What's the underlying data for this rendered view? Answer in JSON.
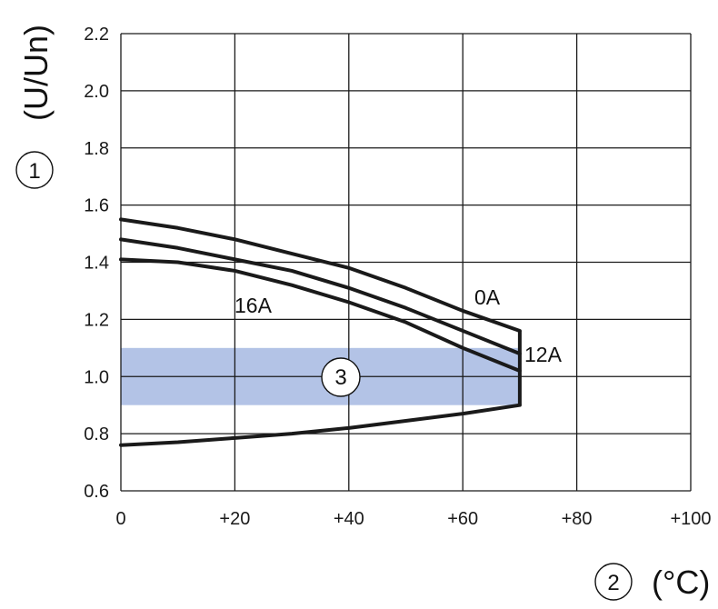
{
  "chart_data": {
    "type": "line",
    "x": [
      0,
      10,
      20,
      30,
      40,
      50,
      60,
      70
    ],
    "xlim": [
      0,
      100
    ],
    "ylim": [
      0.6,
      2.2
    ],
    "xticks": [
      "0",
      "+20",
      "+40",
      "+60",
      "+80",
      "+100"
    ],
    "yticks": [
      "0.6",
      "0.8",
      "1.0",
      "1.2",
      "1.4",
      "1.6",
      "1.8",
      "2.0",
      "2.2"
    ],
    "ylabel": "(U/Un)",
    "ylabel_marker": "1",
    "xlabel": "(°C)",
    "xlabel_marker": "2",
    "grid": true,
    "series": [
      {
        "name": "0A",
        "values": [
          1.55,
          1.52,
          1.48,
          1.43,
          1.38,
          1.31,
          1.23,
          1.16
        ]
      },
      {
        "name": "12A",
        "values": [
          1.48,
          1.45,
          1.41,
          1.37,
          1.31,
          1.24,
          1.16,
          1.08
        ]
      },
      {
        "name": "16A",
        "values": [
          1.41,
          1.4,
          1.37,
          1.32,
          1.26,
          1.19,
          1.1,
          1.02
        ]
      },
      {
        "name": "",
        "values": [
          0.76,
          0.77,
          0.785,
          0.8,
          0.82,
          0.845,
          0.87,
          0.9
        ]
      }
    ],
    "band": {
      "y": [
        0.9,
        1.1
      ],
      "x": [
        0,
        70
      ],
      "color": "#b3c3e6",
      "marker": "3"
    }
  }
}
